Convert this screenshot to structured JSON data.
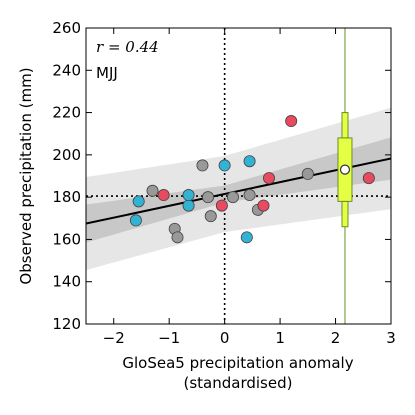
{
  "chart_data": {
    "type": "scatter",
    "xlabel": "GloSea5 precipitation anomaly",
    "xlabel_sub": "(standardised)",
    "ylabel": "Observed precipitation (mm)",
    "xlim": [
      -2.5,
      3
    ],
    "ylim": [
      120,
      260
    ],
    "xticks": [
      -2,
      -1,
      0,
      1,
      2,
      3
    ],
    "yticks": [
      120,
      140,
      160,
      180,
      200,
      220,
      240,
      260
    ],
    "xtick_labels": [
      "−2",
      "−1",
      "0",
      "1",
      "2",
      "3"
    ],
    "ytick_labels": [
      "120",
      "140",
      "160",
      "180",
      "200",
      "220",
      "240",
      "260"
    ],
    "annotation_r": "r = 0.44",
    "annotation_season": "MJJ",
    "grid": false,
    "regression": {
      "slope": 5.6,
      "intercept": 181.5
    },
    "confidence_inner_halfwidth": [
      [
        -2.5,
        9
      ],
      [
        0,
        4
      ],
      [
        3,
        10
      ]
    ],
    "confidence_outer_halfwidth": [
      [
        -2.5,
        22
      ],
      [
        0,
        18
      ],
      [
        3,
        24
      ]
    ],
    "mean_x": 0,
    "mean_y": 180.5,
    "forecast_x": 2.17,
    "boxplot": {
      "x": 2.17,
      "min": 166,
      "q1": 178,
      "median": 193,
      "q3": 208,
      "max": 220,
      "mean": 193
    },
    "series": [
      {
        "color": "#999999",
        "points": [
          [
            -1.3,
            183
          ],
          [
            -0.9,
            165
          ],
          [
            -0.85,
            161
          ],
          [
            -0.4,
            195
          ],
          [
            -0.25,
            171
          ],
          [
            0.15,
            180
          ],
          [
            0.45,
            181
          ],
          [
            0.6,
            174
          ],
          [
            1.5,
            191
          ],
          [
            -0.3,
            180
          ]
        ]
      },
      {
        "color": "#33b3d4",
        "points": [
          [
            -1.6,
            169
          ],
          [
            -1.55,
            178
          ],
          [
            -0.65,
            176
          ],
          [
            -0.65,
            181
          ],
          [
            0.0,
            195
          ],
          [
            0.4,
            161
          ],
          [
            0.45,
            197
          ]
        ]
      },
      {
        "color": "#e84a5f",
        "points": [
          [
            -1.1,
            181
          ],
          [
            -0.05,
            176
          ],
          [
            0.7,
            176
          ],
          [
            0.8,
            189
          ],
          [
            1.2,
            216
          ],
          [
            2.6,
            189
          ]
        ]
      }
    ],
    "colors": {
      "fit_line": "#000000",
      "band_inner": "#c8c8c8",
      "band_outer": "#e6e6e6",
      "forecast": "#e5ff44",
      "forecast_edge": "#6b8e23"
    }
  }
}
